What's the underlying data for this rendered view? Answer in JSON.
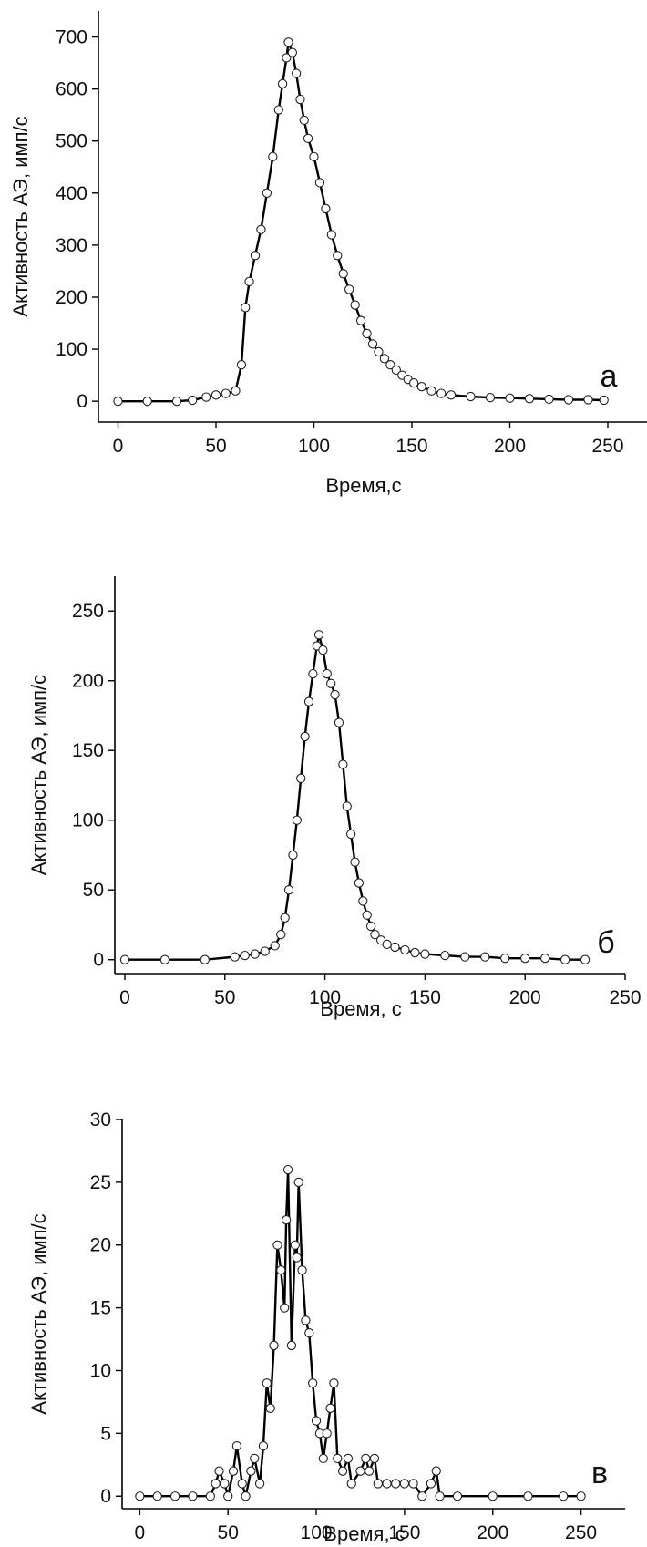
{
  "chart_data": [
    {
      "type": "scatter",
      "title": "",
      "xlabel": "Время,с",
      "ylabel": "Активность АЭ, имп/с",
      "panel_label": "а",
      "xlim": [
        -10,
        270
      ],
      "ylim": [
        -40,
        750
      ],
      "xticks": [
        0,
        50,
        100,
        150,
        200,
        250
      ],
      "yticks": [
        0,
        100,
        200,
        300,
        400,
        500,
        600,
        700
      ],
      "grid": false,
      "legend": "none",
      "peak": {
        "x": 87,
        "y": 690
      },
      "series": [
        {
          "style": "points+line",
          "x": [
            0,
            15,
            30,
            38,
            45,
            50,
            55,
            60,
            63,
            65,
            67,
            70,
            73,
            76,
            79,
            82,
            84,
            86,
            87,
            89,
            91,
            93,
            95,
            97,
            100,
            103,
            106,
            109,
            112,
            115,
            118,
            121,
            124,
            127,
            130,
            133,
            136,
            139,
            142,
            145,
            148,
            151,
            155,
            160,
            165,
            170,
            180,
            190,
            200,
            210,
            220,
            230,
            240,
            248
          ],
          "y": [
            0,
            0,
            0,
            2,
            8,
            12,
            15,
            20,
            70,
            180,
            230,
            280,
            330,
            400,
            470,
            560,
            610,
            660,
            690,
            670,
            630,
            580,
            540,
            505,
            470,
            420,
            370,
            320,
            280,
            245,
            215,
            185,
            155,
            130,
            110,
            95,
            82,
            70,
            60,
            50,
            42,
            35,
            28,
            20,
            15,
            12,
            9,
            7,
            6,
            5,
            4,
            3,
            3,
            2
          ]
        }
      ]
    },
    {
      "type": "scatter",
      "title": "",
      "xlabel": "Время, с",
      "ylabel": "Активность АЭ, имп/с",
      "panel_label": "б",
      "xlim": [
        -5,
        250
      ],
      "ylim": [
        -10,
        275
      ],
      "xticks": [
        0,
        50,
        100,
        150,
        200,
        250
      ],
      "yticks": [
        0,
        50,
        100,
        150,
        200,
        250
      ],
      "grid": false,
      "legend": "none",
      "peak": {
        "x": 97,
        "y": 233
      },
      "series": [
        {
          "style": "points+line",
          "x": [
            0,
            20,
            40,
            55,
            60,
            65,
            70,
            75,
            78,
            80,
            82,
            84,
            86,
            88,
            90,
            92,
            94,
            96,
            97,
            99,
            101,
            103,
            105,
            107,
            109,
            111,
            113,
            115,
            117,
            119,
            121,
            123,
            125,
            128,
            131,
            135,
            140,
            145,
            150,
            160,
            170,
            180,
            190,
            200,
            210,
            220,
            230
          ],
          "y": [
            0,
            0,
            0,
            2,
            3,
            4,
            6,
            10,
            18,
            30,
            50,
            75,
            100,
            130,
            160,
            185,
            205,
            225,
            233,
            222,
            205,
            198,
            190,
            170,
            140,
            110,
            90,
            70,
            55,
            42,
            32,
            24,
            18,
            14,
            11,
            9,
            7,
            5,
            4,
            3,
            2,
            2,
            1,
            1,
            1,
            0,
            0
          ]
        }
      ]
    },
    {
      "type": "scatter",
      "title": "",
      "xlabel": "Время, с",
      "ylabel": "Активность АЭ, имп/с",
      "panel_label": "в",
      "xlim": [
        -10,
        275
      ],
      "ylim": [
        -1,
        30
      ],
      "xticks": [
        0,
        50,
        100,
        150,
        200,
        250
      ],
      "yticks": [
        0,
        5,
        10,
        15,
        20,
        25,
        30
      ],
      "grid": false,
      "legend": "none",
      "peak": {
        "x": 84,
        "y": 26
      },
      "series": [
        {
          "style": "points+line",
          "x": [
            0,
            10,
            20,
            30,
            40,
            43,
            45,
            48,
            50,
            53,
            55,
            58,
            60,
            63,
            65,
            68,
            70,
            72,
            74,
            76,
            78,
            80,
            82,
            83,
            84,
            86,
            88,
            89,
            90,
            92,
            94,
            96,
            98,
            100,
            102,
            104,
            106,
            108,
            110,
            112,
            115,
            118,
            120,
            125,
            128,
            130,
            133,
            135,
            140,
            145,
            150,
            155,
            160,
            165,
            168,
            170,
            180,
            200,
            220,
            240,
            250
          ],
          "y": [
            0,
            0,
            0,
            0,
            0,
            1,
            2,
            1,
            0,
            2,
            4,
            1,
            0,
            2,
            3,
            1,
            4,
            9,
            7,
            12,
            20,
            18,
            15,
            22,
            26,
            12,
            20,
            19,
            25,
            18,
            14,
            13,
            9,
            6,
            5,
            3,
            5,
            7,
            9,
            3,
            2,
            3,
            1,
            2,
            3,
            2,
            3,
            1,
            1,
            1,
            1,
            1,
            0,
            1,
            2,
            0,
            0,
            0,
            0,
            0,
            0
          ]
        }
      ]
    }
  ]
}
